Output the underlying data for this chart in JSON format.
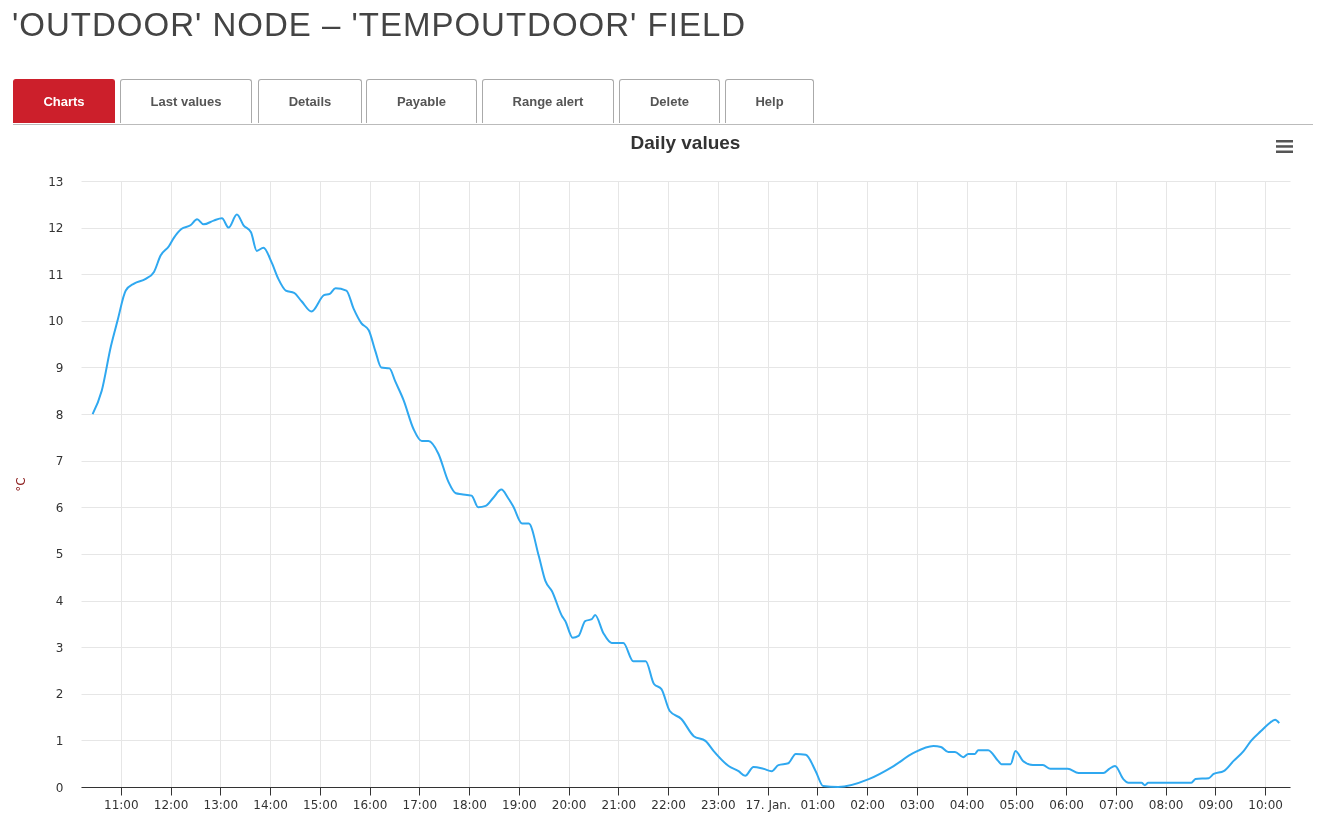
{
  "chart_data": {
    "type": "line",
    "title": "'OUTDOOR' NODE – 'TEMPOUTDOOR' FIELD",
    "subtitle": "Daily values",
    "ylabel": "°C",
    "annotations": [
      "Charts",
      "Last values",
      "Details",
      "Payable",
      "Range alert",
      "Delete",
      "Help"
    ],
    "x": [
      "--01-16T10:26",
      "--01-16T10:37",
      "--01-16T10:48",
      "--01-16T10:56",
      "--01-16T11:06",
      "--01-16T11:16",
      "--01-16T11:30",
      "--01-16T11:40",
      "--01-16T11:48",
      "--01-16T11:58",
      "--01-16T12:04",
      "--01-16T12:13",
      "--01-16T12:24",
      "--01-16T12:32",
      "--01-16T12:40",
      "--01-16T12:52",
      "--01-16T13:02",
      "--01-16T13:10",
      "--01-16T13:20",
      "--01-16T13:28",
      "--01-16T13:37",
      "--01-16T13:44",
      "--01-16T13:52",
      "--01-16T14:02",
      "--01-16T14:10",
      "--01-16T14:19",
      "--01-16T14:29",
      "--01-16T14:38",
      "--01-16T14:50",
      "--01-16T15:05",
      "--01-16T15:12",
      "--01-16T15:19",
      "--01-16T15:32",
      "--01-16T15:41",
      "--01-16T15:50",
      "--01-16T15:59",
      "--01-16T16:07",
      "--01-16T16:14",
      "--01-16T16:24",
      "--01-16T16:31",
      "--01-16T16:41",
      "--01-16T16:53",
      "--01-16T17:03",
      "--01-16T17:11",
      "--01-16T17:23",
      "--01-16T17:35",
      "--01-16T17:44",
      "--01-16T17:51",
      "--01-16T18:03",
      "--01-16T18:11",
      "--01-16T18:20",
      "--01-16T18:29",
      "--01-16T18:39",
      "--01-16T18:47",
      "--01-16T18:53",
      "--01-16T19:04",
      "--01-16T19:12",
      "--01-16T19:24",
      "--01-16T19:32",
      "--01-16T19:40",
      "--01-16T19:52",
      "--01-16T19:56",
      "--01-16T20:05",
      "--01-16T20:12",
      "--01-16T20:20",
      "--01-16T20:28",
      "--01-16T20:32",
      "--01-16T20:42",
      "--01-16T20:52",
      "--01-16T21:06",
      "--01-16T21:18",
      "--01-16T21:33",
      "--01-16T21:43",
      "--01-16T21:52",
      "--01-16T22:02",
      "--01-16T22:16",
      "--01-16T22:31",
      "--01-16T22:45",
      "--01-16T22:55",
      "--01-16T23:13",
      "--01-16T23:25",
      "--01-16T23:33",
      "--01-16T23:43",
      "--01-16T23:55",
      "--01-17T00:05",
      "--01-17T00:13",
      "--01-17T00:25",
      "--01-17T00:34",
      "--01-17T00:46",
      "--01-17T00:58",
      "--01-17T01:07",
      "--01-17T01:25",
      "--01-17T02:02",
      "--01-17T02:32",
      "--01-17T02:56",
      "--01-17T03:20",
      "--01-17T03:29",
      "--01-17T03:38",
      "--01-17T03:46",
      "--01-17T03:56",
      "--01-17T04:02",
      "--01-17T04:10",
      "--01-17T04:14",
      "--01-17T04:26",
      "--01-17T04:38",
      "--01-17T04:42",
      "--01-17T04:53",
      "--01-17T04:59",
      "--01-17T05:08",
      "--01-17T05:20",
      "--01-17T05:32",
      "--01-17T05:41",
      "--01-17T06:02",
      "--01-17T06:15",
      "--01-17T06:45",
      "--01-17T06:52",
      "--01-17T06:59",
      "--01-17T07:09",
      "--01-17T07:15",
      "--01-17T07:31",
      "--01-17T07:35",
      "--01-17T07:39",
      "--01-17T08:31",
      "--01-17T08:36",
      "--01-17T08:52",
      "--01-17T08:58",
      "--01-17T09:10",
      "--01-17T09:22",
      "--01-17T09:34",
      "--01-17T09:43",
      "--01-17T09:55",
      "--01-17T10:04",
      "--01-17T10:12",
      "--01-17T10:17"
    ],
    "series": [
      {
        "color": "#2fa8f0",
        "values": [
          8.0,
          8.5,
          9.45,
          10.0,
          10.65,
          10.8,
          10.9,
          11.05,
          11.4,
          11.6,
          11.78,
          11.97,
          12.05,
          12.18,
          12.07,
          12.15,
          12.2,
          12.0,
          12.28,
          12.05,
          11.9,
          11.5,
          11.57,
          11.25,
          10.9,
          10.65,
          10.6,
          10.42,
          10.2,
          10.55,
          10.58,
          10.7,
          10.65,
          10.25,
          9.95,
          9.8,
          9.35,
          9.0,
          8.98,
          8.7,
          8.3,
          7.68,
          7.42,
          7.42,
          7.15,
          6.55,
          6.3,
          6.28,
          6.25,
          6.0,
          6.03,
          6.2,
          6.38,
          6.2,
          6.03,
          5.65,
          5.65,
          4.96,
          4.42,
          4.2,
          3.67,
          3.56,
          3.2,
          3.24,
          3.56,
          3.6,
          3.69,
          3.3,
          3.09,
          3.09,
          2.7,
          2.7,
          2.21,
          2.1,
          1.63,
          1.46,
          1.09,
          0.99,
          0.77,
          0.45,
          0.34,
          0.24,
          0.43,
          0.39,
          0.34,
          0.47,
          0.51,
          0.71,
          0.69,
          0.34,
          0.02,
          0.0,
          0.17,
          0.45,
          0.73,
          0.88,
          0.86,
          0.75,
          0.75,
          0.64,
          0.71,
          0.71,
          0.79,
          0.79,
          0.56,
          0.49,
          0.49,
          0.77,
          0.56,
          0.47,
          0.47,
          0.39,
          0.39,
          0.3,
          0.3,
          0.39,
          0.45,
          0.17,
          0.09,
          0.09,
          0.04,
          0.09,
          0.09,
          0.17,
          0.19,
          0.28,
          0.34,
          0.56,
          0.77,
          0.99,
          1.2,
          1.35,
          1.44,
          1.37
        ]
      }
    ],
    "xlim": [
      "--01-16T10:12",
      "--01-17T10:30"
    ],
    "ylim": [
      0,
      13
    ],
    "xticks": [
      {
        "value": "--01-16T11:00",
        "label": "11:00"
      },
      {
        "value": "--01-16T12:00",
        "label": "12:00"
      },
      {
        "value": "--01-16T13:00",
        "label": "13:00"
      },
      {
        "value": "--01-16T14:00",
        "label": "14:00"
      },
      {
        "value": "--01-16T15:00",
        "label": "15:00"
      },
      {
        "value": "--01-16T16:00",
        "label": "16:00"
      },
      {
        "value": "--01-16T17:00",
        "label": "17:00"
      },
      {
        "value": "--01-16T18:00",
        "label": "18:00"
      },
      {
        "value": "--01-16T19:00",
        "label": "19:00"
      },
      {
        "value": "--01-16T20:00",
        "label": "20:00"
      },
      {
        "value": "--01-16T21:00",
        "label": "21:00"
      },
      {
        "value": "--01-16T22:00",
        "label": "22:00"
      },
      {
        "value": "--01-16T23:00",
        "label": "23:00"
      },
      {
        "value": "--01-17T00:00",
        "label": "17. Jan."
      },
      {
        "value": "--01-17T01:00",
        "label": "01:00"
      },
      {
        "value": "--01-17T02:00",
        "label": "02:00"
      },
      {
        "value": "--01-17T03:00",
        "label": "03:00"
      },
      {
        "value": "--01-17T04:00",
        "label": "04:00"
      },
      {
        "value": "--01-17T05:00",
        "label": "05:00"
      },
      {
        "value": "--01-17T06:00",
        "label": "06:00"
      },
      {
        "value": "--01-17T07:00",
        "label": "07:00"
      },
      {
        "value": "--01-17T08:00",
        "label": "08:00"
      },
      {
        "value": "--01-17T09:00",
        "label": "09:00"
      },
      {
        "value": "--01-17T10:00",
        "label": "10:00"
      }
    ],
    "yticks": [
      0,
      1,
      2,
      3,
      4,
      5,
      6,
      7,
      8,
      9,
      10,
      11,
      12,
      13
    ],
    "grid": true,
    "marker": "none",
    "line_style": "solid"
  }
}
